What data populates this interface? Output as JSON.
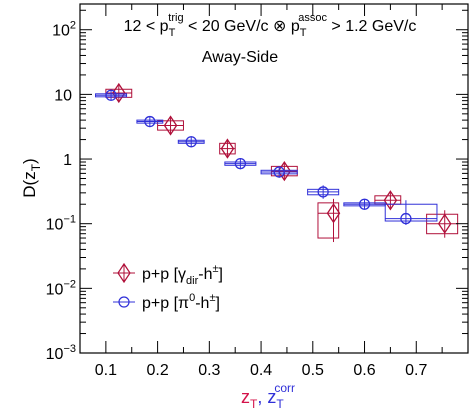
{
  "chart_data": {
    "type": "scatter",
    "header": {
      "line1": {
        "a": "12 < p",
        "a_sub": "T",
        "a_sup": "trig",
        "b": " < 20 GeV/c ⊗ p",
        "b_sub": "T",
        "b_sup": "assoc",
        "c": " > 1.2 GeV/c"
      },
      "line2": "Away-Side"
    },
    "ylabel": {
      "main": "D(z",
      "sub": "T",
      "close": ")"
    },
    "xlabel": {
      "a": "z",
      "a_sub": "T",
      "sep": ", ",
      "b": "z",
      "b_sub": "T",
      "b_sup": "corr"
    },
    "x_ticks": [
      "0.1",
      "0.2",
      "0.3",
      "0.4",
      "0.5",
      "0.6",
      "0.7"
    ],
    "y_ticks": [
      {
        "base": "10",
        "exp": "2"
      },
      {
        "base": "10",
        "exp": ""
      },
      {
        "base": "1",
        "exp": ""
      },
      {
        "base": "10",
        "exp": "−1"
      },
      {
        "base": "10",
        "exp": "−2"
      },
      {
        "base": "10",
        "exp": "−3"
      }
    ],
    "xlim": [
      0.05,
      0.8
    ],
    "ylim": [
      0.001,
      250
    ],
    "y_scale": "log",
    "legend_position": "bottom-left",
    "series": [
      {
        "legend": {
          "a": "p+p [γ",
          "a_sub": "dir",
          "b": "-h",
          "b_sup": "±",
          "c": "]"
        },
        "color": "#b0103a",
        "marker": "diamond",
        "points": [
          {
            "x": 0.125,
            "y": 10.5,
            "xlo": 0.1,
            "xhi": 0.15,
            "ylo": 9.0,
            "yhi": 12.0
          },
          {
            "x": 0.225,
            "y": 3.3,
            "xlo": 0.2,
            "xhi": 0.25,
            "ylo": 2.8,
            "yhi": 3.9
          },
          {
            "x": 0.335,
            "y": 1.45,
            "xlo": 0.32,
            "xhi": 0.35,
            "ylo": 1.2,
            "yhi": 1.75
          },
          {
            "x": 0.445,
            "y": 0.65,
            "xlo": 0.42,
            "xhi": 0.47,
            "ylo": 0.55,
            "yhi": 0.77
          },
          {
            "x": 0.54,
            "y": 0.145,
            "xlo": 0.51,
            "xhi": 0.55,
            "ylo": 0.06,
            "yhi": 0.21
          },
          {
            "x": 0.65,
            "y": 0.23,
            "xlo": 0.62,
            "xhi": 0.67,
            "ylo": 0.2,
            "yhi": 0.27
          },
          {
            "x": 0.755,
            "y": 0.1,
            "xlo": 0.72,
            "xhi": 0.78,
            "ylo": 0.07,
            "yhi": 0.14
          }
        ]
      },
      {
        "legend": {
          "a": "p+p [π",
          "a_sup": "0",
          "b": "-h",
          "b_sup": "±",
          "c": "]"
        },
        "color": "#3030d8",
        "marker": "circle",
        "points": [
          {
            "x": 0.11,
            "y": 9.7,
            "xlo": 0.08,
            "xhi": 0.14,
            "ylo": 9.2,
            "yhi": 10.2
          },
          {
            "x": 0.185,
            "y": 3.8,
            "xlo": 0.16,
            "xhi": 0.21,
            "ylo": 3.6,
            "yhi": 4.0
          },
          {
            "x": 0.265,
            "y": 1.85,
            "xlo": 0.24,
            "xhi": 0.29,
            "ylo": 1.75,
            "yhi": 1.95
          },
          {
            "x": 0.36,
            "y": 0.85,
            "xlo": 0.33,
            "xhi": 0.39,
            "ylo": 0.8,
            "yhi": 0.9
          },
          {
            "x": 0.435,
            "y": 0.63,
            "xlo": 0.4,
            "xhi": 0.47,
            "ylo": 0.59,
            "yhi": 0.67
          },
          {
            "x": 0.52,
            "y": 0.31,
            "xlo": 0.49,
            "xhi": 0.55,
            "ylo": 0.28,
            "yhi": 0.34
          },
          {
            "x": 0.6,
            "y": 0.2,
            "xlo": 0.56,
            "xhi": 0.64,
            "ylo": 0.19,
            "yhi": 0.21
          },
          {
            "x": 0.68,
            "y": 0.12,
            "xlo": 0.64,
            "xhi": 0.74,
            "ylo": 0.11,
            "yhi": 0.2
          }
        ]
      }
    ]
  }
}
